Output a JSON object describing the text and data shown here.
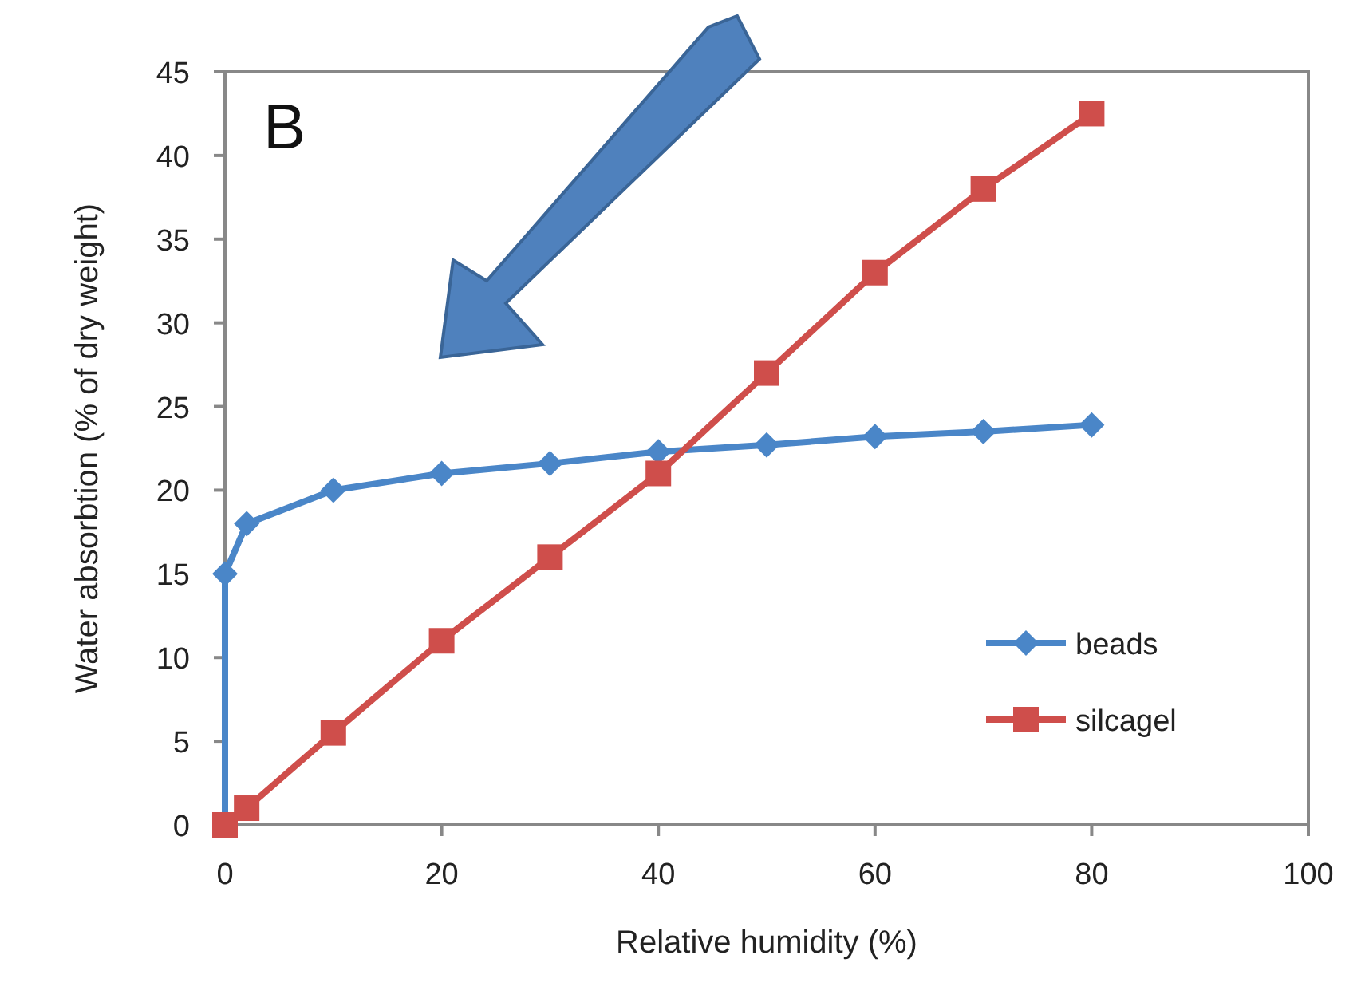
{
  "chart_data": {
    "type": "line",
    "xlabel": "Relative humidity (%)",
    "ylabel": "Water absorbtion (% of dry weight)",
    "annotations": [
      "B"
    ],
    "xlim": [
      0,
      100
    ],
    "xticks": [
      0,
      20,
      40,
      60,
      80,
      100
    ],
    "ylim": [
      0,
      45
    ],
    "yticks": [
      0,
      5,
      10,
      15,
      20,
      25,
      30,
      35,
      40,
      45
    ],
    "grid": false,
    "legend": "right",
    "line_style": "solid",
    "series": [
      {
        "name": "beads",
        "color": "#4a86c8",
        "marker": "diamond",
        "x": [
          0,
          0,
          2,
          10,
          20,
          30,
          40,
          50,
          60,
          70,
          80
        ],
        "values": [
          0,
          15,
          18,
          20,
          21,
          21.6,
          22.3,
          22.7,
          23.2,
          23.5,
          23.9
        ]
      },
      {
        "name": "silcagel",
        "color": "#cf4e4b",
        "marker": "square",
        "x": [
          0,
          2,
          10,
          20,
          30,
          40,
          50,
          60,
          70,
          80
        ],
        "values": [
          0,
          1,
          5.5,
          11,
          16,
          21,
          27,
          33,
          38,
          42.5
        ]
      }
    ]
  }
}
